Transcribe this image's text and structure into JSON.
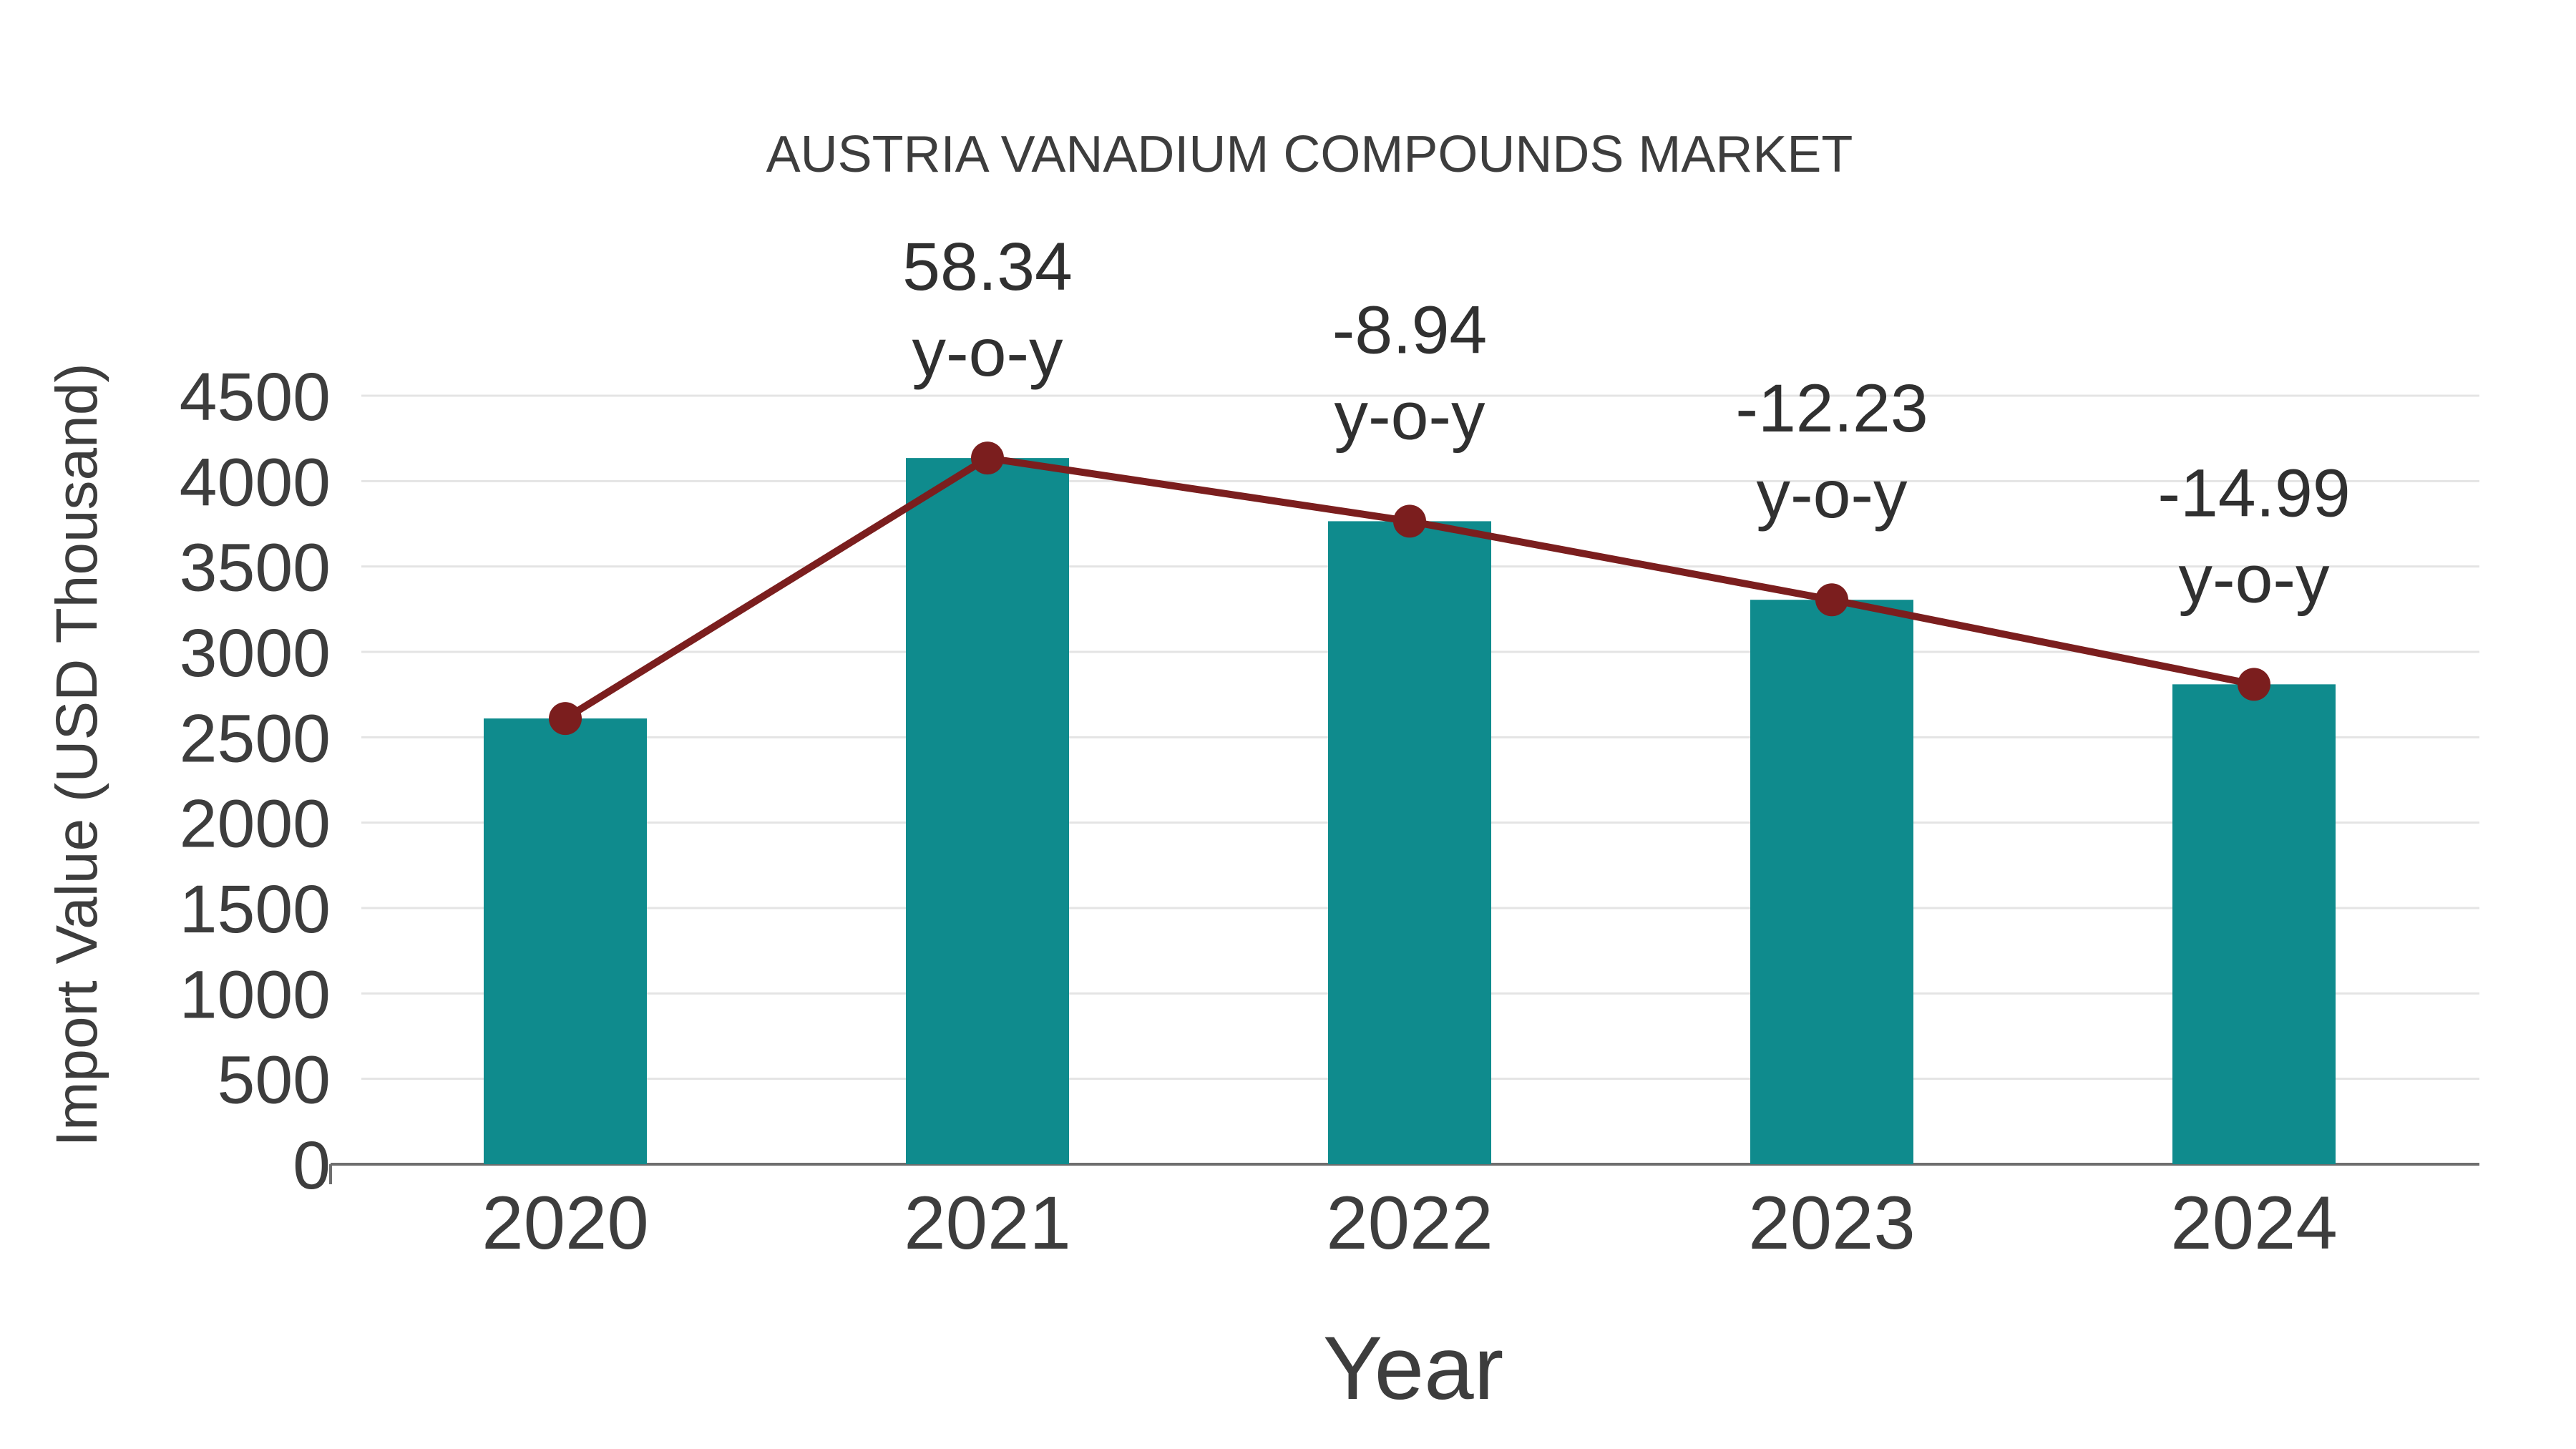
{
  "chart_data": {
    "type": "bar",
    "title": "AUSTRIA VANADIUM COMPOUNDS MARKET",
    "xlabel": "Year",
    "ylabel": "Import Value (USD Thousand)",
    "categories": [
      "2020",
      "2021",
      "2022",
      "2023",
      "2024"
    ],
    "series": [
      {
        "name": "Import Value (USD Thousand)",
        "type": "bar",
        "color": "#0f8b8d",
        "values": [
          2610,
          4135,
          3765,
          3305,
          2810
        ]
      },
      {
        "name": "y-o-y change (%)",
        "type": "line",
        "color": "#7b1e1e",
        "values": [
          null,
          58.34,
          -8.94,
          -12.23,
          -14.99
        ],
        "plotted_at_bar_tops": true
      }
    ],
    "annotations": [
      {
        "category": "2021",
        "lines": [
          "58.34",
          "y-o-y"
        ]
      },
      {
        "category": "2022",
        "lines": [
          "-8.94",
          "y-o-y"
        ]
      },
      {
        "category": "2023",
        "lines": [
          "-12.23",
          "y-o-y"
        ]
      },
      {
        "category": "2024",
        "lines": [
          "-14.99",
          "y-o-y"
        ]
      }
    ],
    "ylim": [
      0,
      4500
    ],
    "yticks": [
      0,
      500,
      1000,
      1500,
      2000,
      2500,
      3000,
      3500,
      4000,
      4500
    ],
    "grid": "horizontal",
    "legend": "none",
    "colors": {
      "bar": "#0f8b8d",
      "line": "#7b1e1e",
      "marker": "#7b1e1e",
      "gridline": "#e4e4e4",
      "axis": "#6e6e6e",
      "text": "#3d3d3d",
      "background": "#ffffff"
    }
  }
}
